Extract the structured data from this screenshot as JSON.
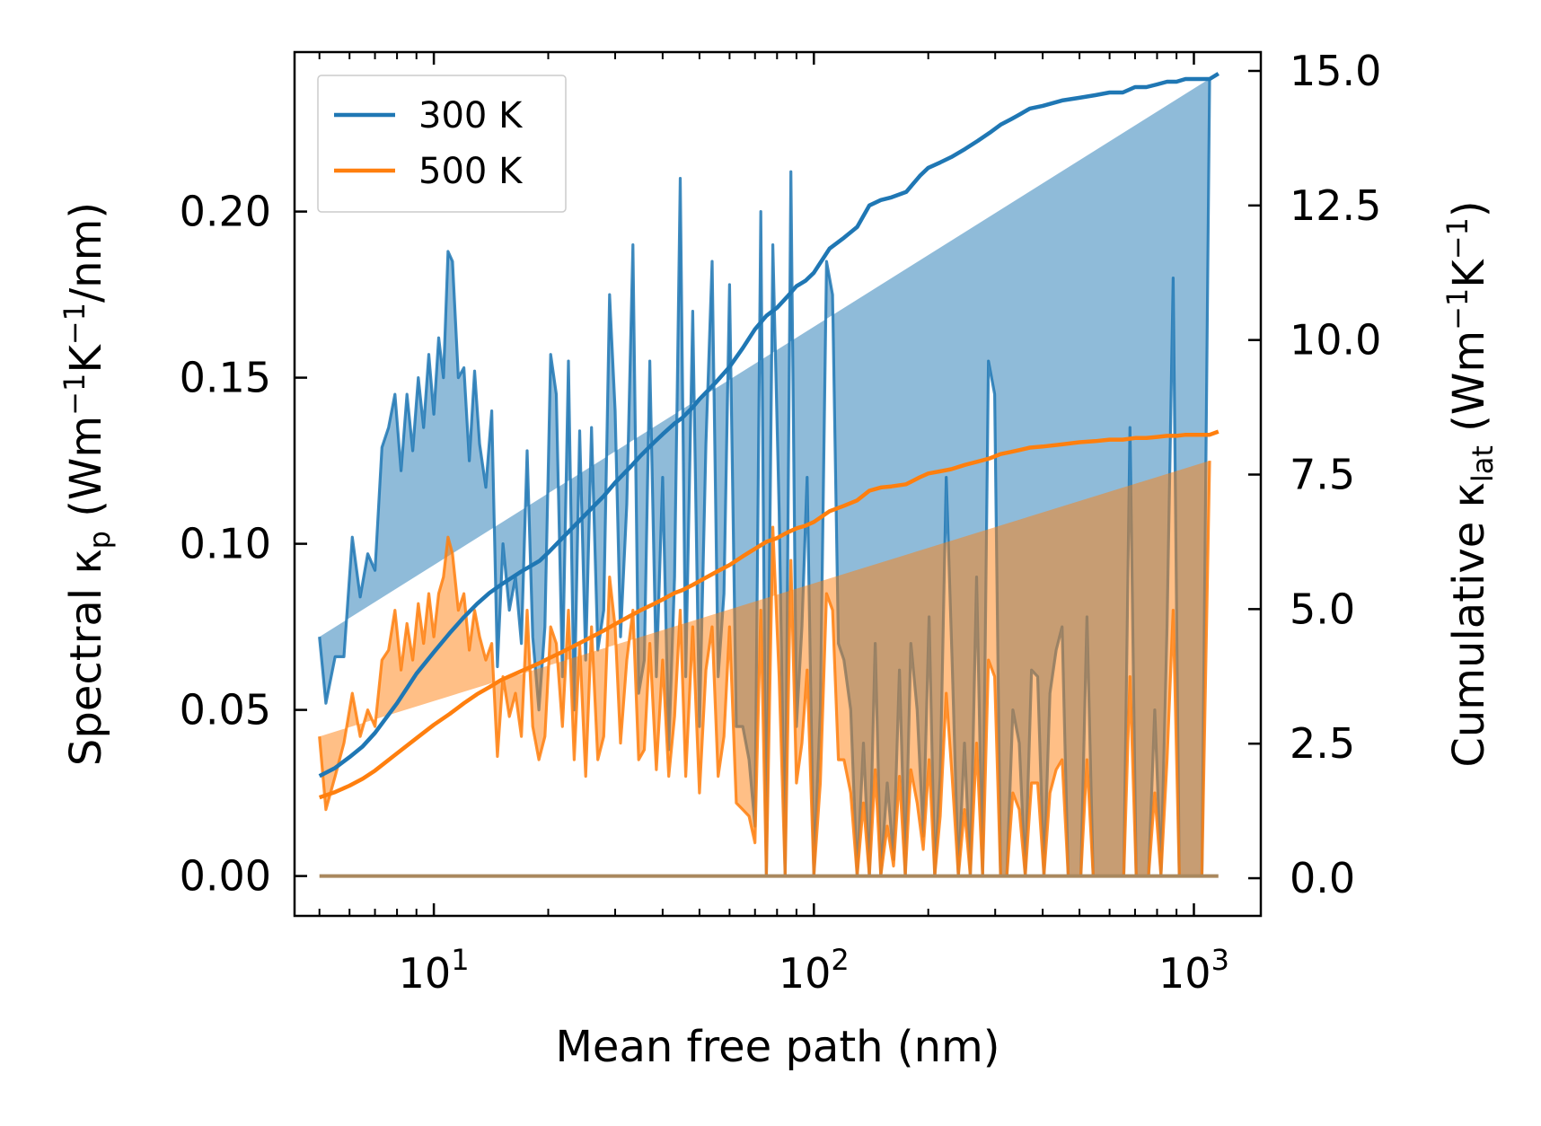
{
  "chart_data": {
    "type": "area",
    "xlabel": "Mean free path (nm)",
    "ylabel_left": {
      "prefix": "Spectral κ",
      "sub": "p",
      "unit_open": " (Wm",
      "sup1": "−1",
      "unit_mid": "K",
      "sup2": "−1",
      "unit_close": "/nm)"
    },
    "ylabel_right": {
      "prefix": "Cumulative κ",
      "sub": "lat",
      "unit_open": " (Wm",
      "sup1": "−1",
      "unit_mid": "K",
      "sup2": "−1",
      "unit_close": ")"
    },
    "xscale": "log",
    "xlim": [
      4.3,
      1500
    ],
    "ylim_left": [
      -0.012,
      0.248
    ],
    "ylim_right": [
      -0.7,
      15.35
    ],
    "x_ticks": [
      {
        "value": 10,
        "base": "10",
        "exp": "1"
      },
      {
        "value": 100,
        "base": "10",
        "exp": "2"
      },
      {
        "value": 1000,
        "base": "10",
        "exp": "3"
      }
    ],
    "y_ticks_left": [
      {
        "value": 0.0,
        "label": "0.00"
      },
      {
        "value": 0.05,
        "label": "0.05"
      },
      {
        "value": 0.1,
        "label": "0.10"
      },
      {
        "value": 0.15,
        "label": "0.15"
      },
      {
        "value": 0.2,
        "label": "0.20"
      }
    ],
    "y_ticks_right": [
      {
        "value": 0.0,
        "label": "0.0"
      },
      {
        "value": 2.5,
        "label": "2.5"
      },
      {
        "value": 5.0,
        "label": "5.0"
      },
      {
        "value": 7.5,
        "label": "7.5"
      },
      {
        "value": 10.0,
        "label": "10.0"
      },
      {
        "value": 12.5,
        "label": "12.5"
      },
      {
        "value": 15.0,
        "label": "15.0"
      }
    ],
    "legend": {
      "position": "upper-left",
      "entries": [
        "300 K",
        "500 K"
      ]
    },
    "colors": {
      "s300": "#1f77b4",
      "s500": "#ff7f0e"
    },
    "spectral_x": [
      5.0,
      5.2,
      5.5,
      5.8,
      6.1,
      6.4,
      6.7,
      7.0,
      7.3,
      7.6,
      7.9,
      8.2,
      8.5,
      8.8,
      9.1,
      9.4,
      9.7,
      10.0,
      10.3,
      10.6,
      10.9,
      11.2,
      11.6,
      12.0,
      12.4,
      12.8,
      13.2,
      13.7,
      14.2,
      14.7,
      15.2,
      15.8,
      16.4,
      17.0,
      17.6,
      18.2,
      18.9,
      19.6,
      20.3,
      21.0,
      21.8,
      22.6,
      23.4,
      24.2,
      25.1,
      26.0,
      27.0,
      28.0,
      29.0,
      30.0,
      31.0,
      32.2,
      33.4,
      34.6,
      35.8,
      37.0,
      38.5,
      40.0,
      41.5,
      43.0,
      44.5,
      46.0,
      48.0,
      50.0,
      52.0,
      54.0,
      56.0,
      58.0,
      60.0,
      62.5,
      65.0,
      67.5,
      70.0,
      72.5,
      75.0,
      78.0,
      81.0,
      84.0,
      87.0,
      90.0,
      93.0,
      96.0,
      100.0,
      104.0,
      108.0,
      112.0,
      116.0,
      120.0,
      125.0,
      130.0,
      135.0,
      140.0,
      145.0,
      150.0,
      156.0,
      162.0,
      168.0,
      174.0,
      180.0,
      187.0,
      194.0,
      201.0,
      208.0,
      215.0,
      223.0,
      231.0,
      240.0,
      249.0,
      258.0,
      268.0,
      278.0,
      288.0,
      299.0,
      310.0,
      322.0,
      334.0,
      347.0,
      360.0,
      374.0,
      388.0,
      403.0,
      418.0,
      434.0,
      450.0,
      467.0,
      485.0,
      504.0,
      523.0,
      543.0,
      564.0,
      585.0,
      607.0,
      630.0,
      654.0,
      679.0,
      705.0,
      732.0,
      760.0,
      789.0,
      819.0,
      850.0,
      882.0,
      915.0,
      950.0,
      1000.0,
      1050.0,
      1100.0,
      1140.0,
      1160.0
    ],
    "spectral_300": [
      0.072,
      0.052,
      0.066,
      0.066,
      0.102,
      0.084,
      0.097,
      0.092,
      0.129,
      0.135,
      0.145,
      0.122,
      0.145,
      0.128,
      0.15,
      0.135,
      0.157,
      0.139,
      0.162,
      0.15,
      0.188,
      0.185,
      0.15,
      0.153,
      0.125,
      0.152,
      0.13,
      0.117,
      0.14,
      0.063,
      0.1,
      0.08,
      0.09,
      0.07,
      0.128,
      0.072,
      0.05,
      0.075,
      0.157,
      0.145,
      0.06,
      0.155,
      0.05,
      0.134,
      0.065,
      0.135,
      0.068,
      0.08,
      0.175,
      0.14,
      0.072,
      0.112,
      0.19,
      0.055,
      0.065,
      0.155,
      0.06,
      0.12,
      0.038,
      0.09,
      0.21,
      0.06,
      0.17,
      0.045,
      0.13,
      0.185,
      0.06,
      0.085,
      0.178,
      0.045,
      0.045,
      0.035,
      0.015,
      0.2,
      0.0,
      0.19,
      0.11,
      0.0,
      0.212,
      0.045,
      0.075,
      0.12,
      0.0,
      0.05,
      0.185,
      0.175,
      0.07,
      0.065,
      0.05,
      0.0,
      0.04,
      0.0,
      0.07,
      0.0,
      0.028,
      0.005,
      0.062,
      0.0,
      0.07,
      0.05,
      0.012,
      0.078,
      0.0,
      0.03,
      0.12,
      0.065,
      0.0,
      0.04,
      0.0,
      0.09,
      0.0,
      0.155,
      0.145,
      0.0,
      0.0,
      0.05,
      0.04,
      0.0,
      0.062,
      0.06,
      0.0,
      0.055,
      0.068,
      0.075,
      0.0,
      0.0,
      0.0,
      0.078,
      0.0,
      0.0,
      0.0,
      0.0,
      0.0,
      0.0,
      0.135,
      0.0,
      0.0,
      0.0,
      0.05,
      0.0,
      0.075,
      0.18,
      0.0,
      0.0,
      0.0,
      0.0,
      0.24
    ],
    "spectral_500": [
      0.042,
      0.02,
      0.03,
      0.04,
      0.055,
      0.042,
      0.05,
      0.045,
      0.065,
      0.068,
      0.08,
      0.062,
      0.076,
      0.065,
      0.082,
      0.07,
      0.085,
      0.072,
      0.085,
      0.09,
      0.102,
      0.097,
      0.08,
      0.085,
      0.068,
      0.08,
      0.072,
      0.065,
      0.07,
      0.036,
      0.06,
      0.048,
      0.055,
      0.042,
      0.08,
      0.045,
      0.035,
      0.042,
      0.075,
      0.07,
      0.045,
      0.08,
      0.035,
      0.07,
      0.03,
      0.075,
      0.035,
      0.042,
      0.09,
      0.075,
      0.04,
      0.065,
      0.08,
      0.035,
      0.038,
      0.07,
      0.032,
      0.065,
      0.03,
      0.048,
      0.08,
      0.03,
      0.075,
      0.025,
      0.062,
      0.075,
      0.03,
      0.042,
      0.075,
      0.022,
      0.02,
      0.018,
      0.01,
      0.08,
      0.0,
      0.105,
      0.06,
      0.0,
      0.095,
      0.028,
      0.04,
      0.062,
      0.0,
      0.028,
      0.085,
      0.08,
      0.035,
      0.035,
      0.025,
      0.0,
      0.022,
      0.0,
      0.032,
      0.0,
      0.015,
      0.003,
      0.03,
      0.0,
      0.032,
      0.022,
      0.008,
      0.035,
      0.0,
      0.018,
      0.055,
      0.03,
      0.0,
      0.02,
      0.0,
      0.04,
      0.0,
      0.065,
      0.06,
      0.0,
      0.0,
      0.025,
      0.02,
      0.0,
      0.028,
      0.028,
      0.0,
      0.025,
      0.032,
      0.035,
      0.0,
      0.0,
      0.0,
      0.035,
      0.0,
      0.0,
      0.0,
      0.0,
      0.0,
      0.0,
      0.06,
      0.0,
      0.0,
      0.0,
      0.025,
      0.0,
      0.035,
      0.08,
      0.0,
      0.0,
      0.0,
      0.0,
      0.125
    ],
    "cumulative_x": [
      5.0,
      5.5,
      6.0,
      6.5,
      7.0,
      8.0,
      9.0,
      10.0,
      11.0,
      12.0,
      13.0,
      14.0,
      15.0,
      17.0,
      19.0,
      20.0,
      22.0,
      25.0,
      28.0,
      30.0,
      33.0,
      35.0,
      38.0,
      40.0,
      43.0,
      45.0,
      48.0,
      50.0,
      55.0,
      60.0,
      65.0,
      70.0,
      75.0,
      80.0,
      85.0,
      90.0,
      95.0,
      100.0,
      110.0,
      120.0,
      130.0,
      140.0,
      150.0,
      160.0,
      175.0,
      190.0,
      200.0,
      215.0,
      230.0,
      250.0,
      270.0,
      290.0,
      310.0,
      330.0,
      350.0,
      370.0,
      400.0,
      450.0,
      500.0,
      550.0,
      600.0,
      650.0,
      700.0,
      750.0,
      800.0,
      850.0,
      900.0,
      950.0,
      1000.0,
      1100.0,
      1160.0
    ],
    "cumulative_300": [
      1.9,
      2.05,
      2.25,
      2.45,
      2.7,
      3.25,
      3.8,
      4.2,
      4.55,
      4.85,
      5.1,
      5.3,
      5.45,
      5.7,
      5.9,
      6.05,
      6.35,
      6.75,
      7.1,
      7.35,
      7.65,
      7.85,
      8.1,
      8.25,
      8.45,
      8.55,
      8.75,
      8.9,
      9.2,
      9.5,
      9.85,
      10.2,
      10.45,
      10.6,
      10.8,
      11.0,
      11.1,
      11.25,
      11.7,
      11.9,
      12.1,
      12.5,
      12.6,
      12.65,
      12.75,
      13.05,
      13.2,
      13.3,
      13.4,
      13.55,
      13.7,
      13.85,
      14.0,
      14.1,
      14.2,
      14.3,
      14.35,
      14.45,
      14.5,
      14.55,
      14.6,
      14.6,
      14.7,
      14.7,
      14.75,
      14.8,
      14.8,
      14.85,
      14.85,
      14.85,
      14.95
    ],
    "cumulative_500": [
      1.5,
      1.6,
      1.72,
      1.85,
      2.0,
      2.32,
      2.6,
      2.85,
      3.05,
      3.25,
      3.42,
      3.55,
      3.68,
      3.85,
      4.0,
      4.08,
      4.22,
      4.42,
      4.6,
      4.72,
      4.88,
      4.98,
      5.1,
      5.18,
      5.3,
      5.35,
      5.45,
      5.52,
      5.68,
      5.82,
      5.98,
      6.12,
      6.25,
      6.32,
      6.42,
      6.5,
      6.55,
      6.62,
      6.82,
      6.92,
      7.02,
      7.2,
      7.26,
      7.28,
      7.32,
      7.45,
      7.52,
      7.56,
      7.6,
      7.68,
      7.74,
      7.8,
      7.88,
      7.92,
      7.96,
      8.0,
      8.02,
      8.06,
      8.1,
      8.12,
      8.15,
      8.15,
      8.18,
      8.18,
      8.2,
      8.22,
      8.22,
      8.24,
      8.24,
      8.24,
      8.3
    ]
  }
}
